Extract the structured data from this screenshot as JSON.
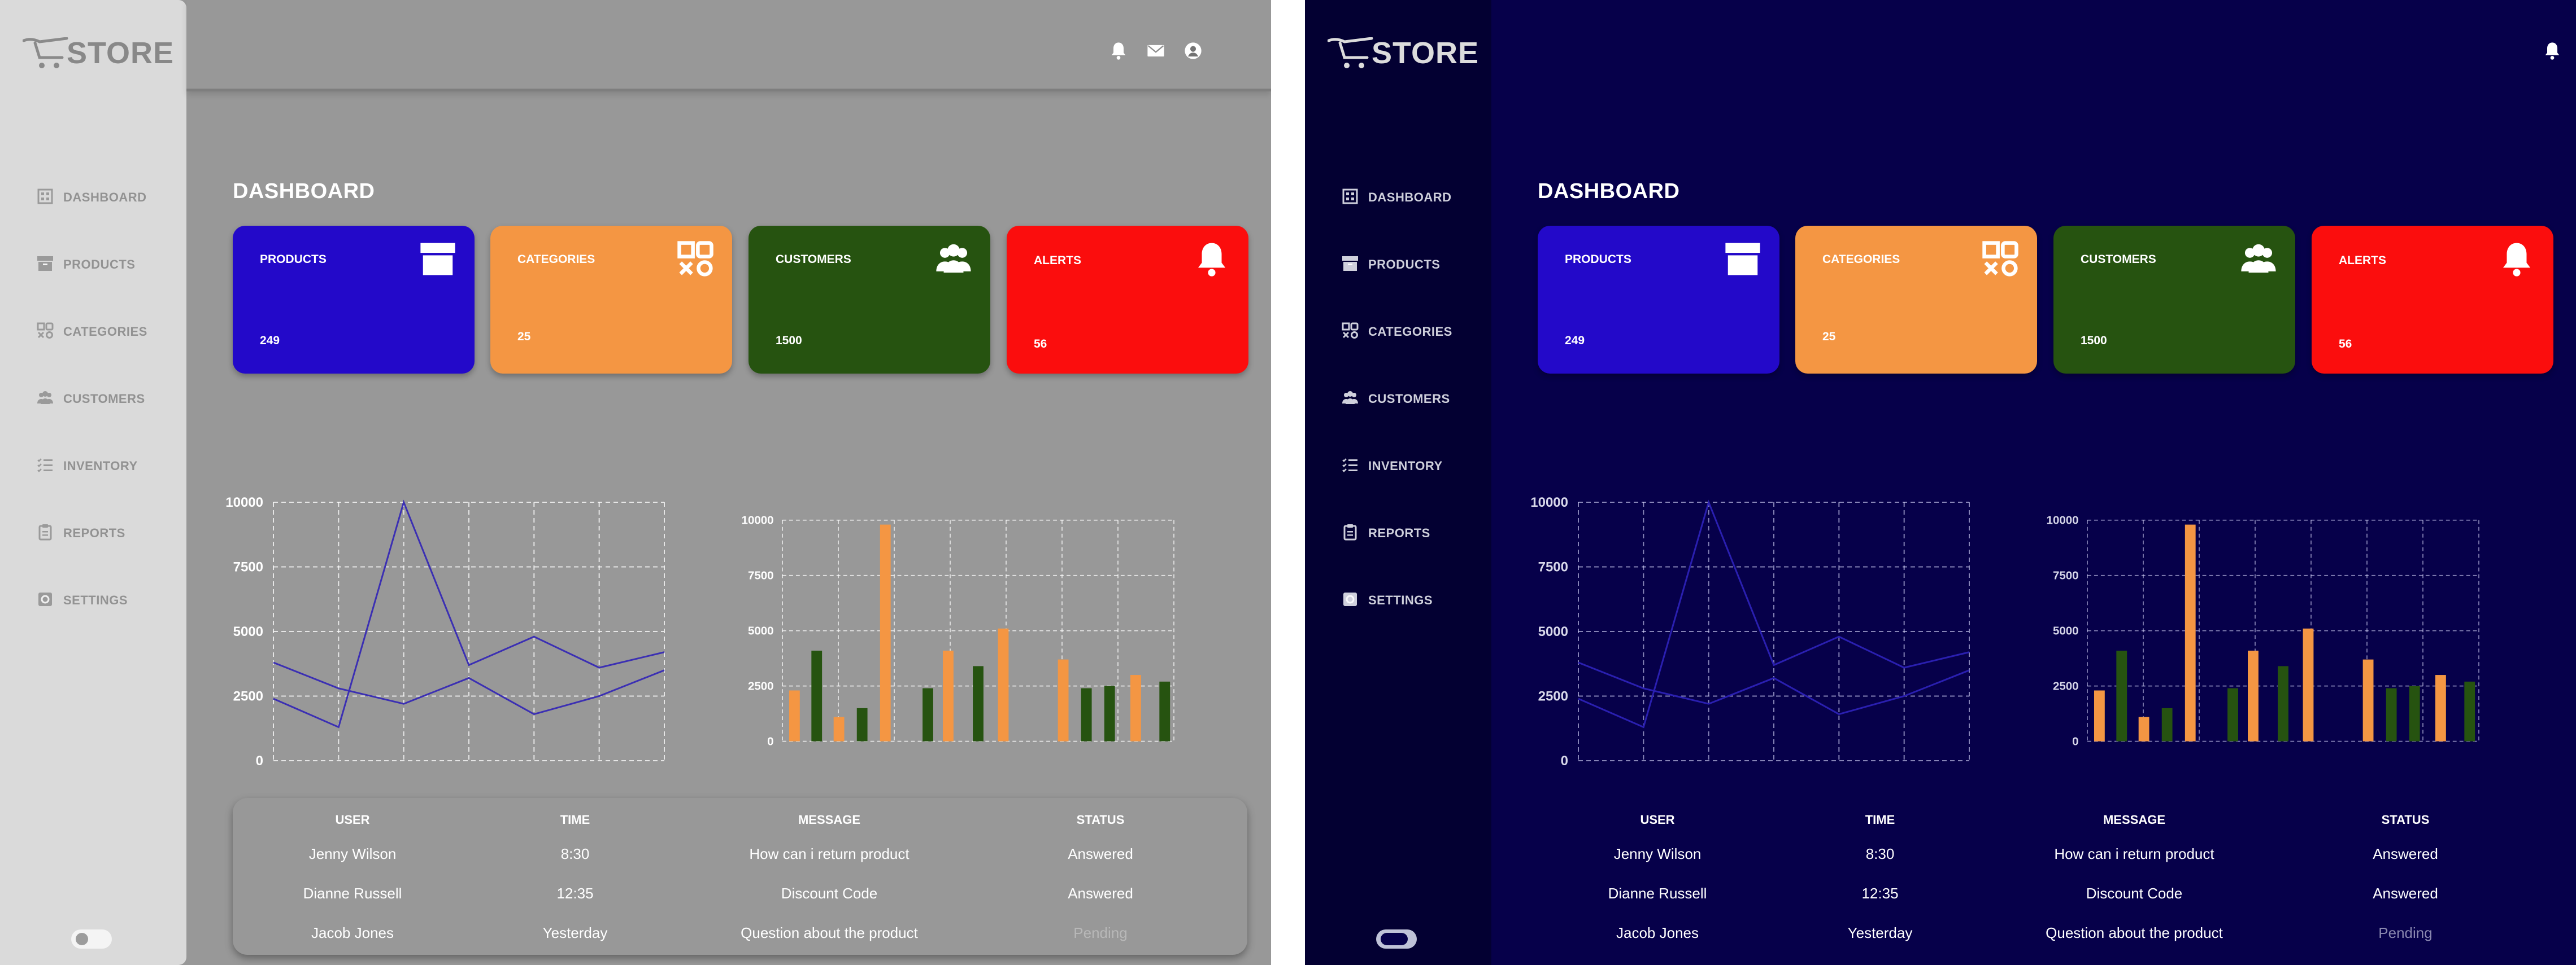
{
  "app": {
    "logo_text": "STORE"
  },
  "nav": [
    {
      "label": "DASHBOARD",
      "icon": "grid-icon"
    },
    {
      "label": "PRODUCTS",
      "icon": "archive-box-icon"
    },
    {
      "label": "CATEGORIES",
      "icon": "categories-icon"
    },
    {
      "label": "CUSTOMERS",
      "icon": "people-icon"
    },
    {
      "label": "INVENTORY",
      "icon": "list-icon"
    },
    {
      "label": "REPORTS",
      "icon": "clipboard-icon"
    },
    {
      "label": "SETTINGS",
      "icon": "gear-icon"
    }
  ],
  "header_icons": [
    "bell-icon",
    "mail-icon",
    "user-circle-icon"
  ],
  "page_title": "DASHBOARD",
  "cards": [
    {
      "label": "PRODUCTS",
      "value": "249",
      "color": "#2309c9",
      "icon": "archive-box-icon"
    },
    {
      "label": "CATEGORIES",
      "value": "25",
      "color": "#f49643",
      "icon": "categories-icon"
    },
    {
      "label": "CUSTOMERS",
      "value": "1500",
      "color": "#265310",
      "icon": "people-icon"
    },
    {
      "label": "ALERTS",
      "value": "56",
      "color": "#fb0d0d",
      "icon": "bell-icon"
    }
  ],
  "chart_data": [
    {
      "type": "line",
      "yticks": [
        "0",
        "2500",
        "5000",
        "7500",
        "10000"
      ],
      "ylim": [
        0,
        10000
      ],
      "grid": true,
      "series": [
        {
          "values": [
            3800,
            2800,
            2200,
            3200,
            1800,
            2500,
            3500
          ]
        },
        {
          "values": [
            2400,
            1300,
            10000,
            3700,
            4800,
            3600,
            4200
          ]
        }
      ],
      "colors": {
        "line": "#3b2fb3"
      }
    },
    {
      "type": "bar",
      "yticks": [
        "0",
        "2500",
        "5000",
        "7500",
        "10000"
      ],
      "ylim": [
        0,
        10000
      ],
      "grid": true,
      "series": [
        {
          "values": [
            2300,
            1100,
            9800,
            4100,
            5100,
            3700,
            3000
          ],
          "color": "#f49643"
        },
        {
          "values": [
            4100,
            1500,
            2400,
            3400,
            2400,
            2500,
            2700
          ],
          "color": "#265310"
        }
      ]
    }
  ],
  "table": {
    "headers": [
      "USER",
      "TIME",
      "MESSAGE",
      "STATUS"
    ],
    "rows": [
      {
        "user": "Jenny Wilson",
        "time": "8:30",
        "message": "How can i  return product",
        "status": "Answered"
      },
      {
        "user": "Dianne Russell",
        "time": "12:35",
        "message": "Discount Code",
        "status": "Answered"
      },
      {
        "user": "Jacob Jones",
        "time": "Yesterday",
        "message": "Question about the product",
        "status": "Pending"
      }
    ]
  },
  "themes": {
    "light": {
      "background": "#989898",
      "sidebar": "#dadada"
    },
    "dark": {
      "background": "#06004a",
      "sidebar": "#030032"
    }
  }
}
